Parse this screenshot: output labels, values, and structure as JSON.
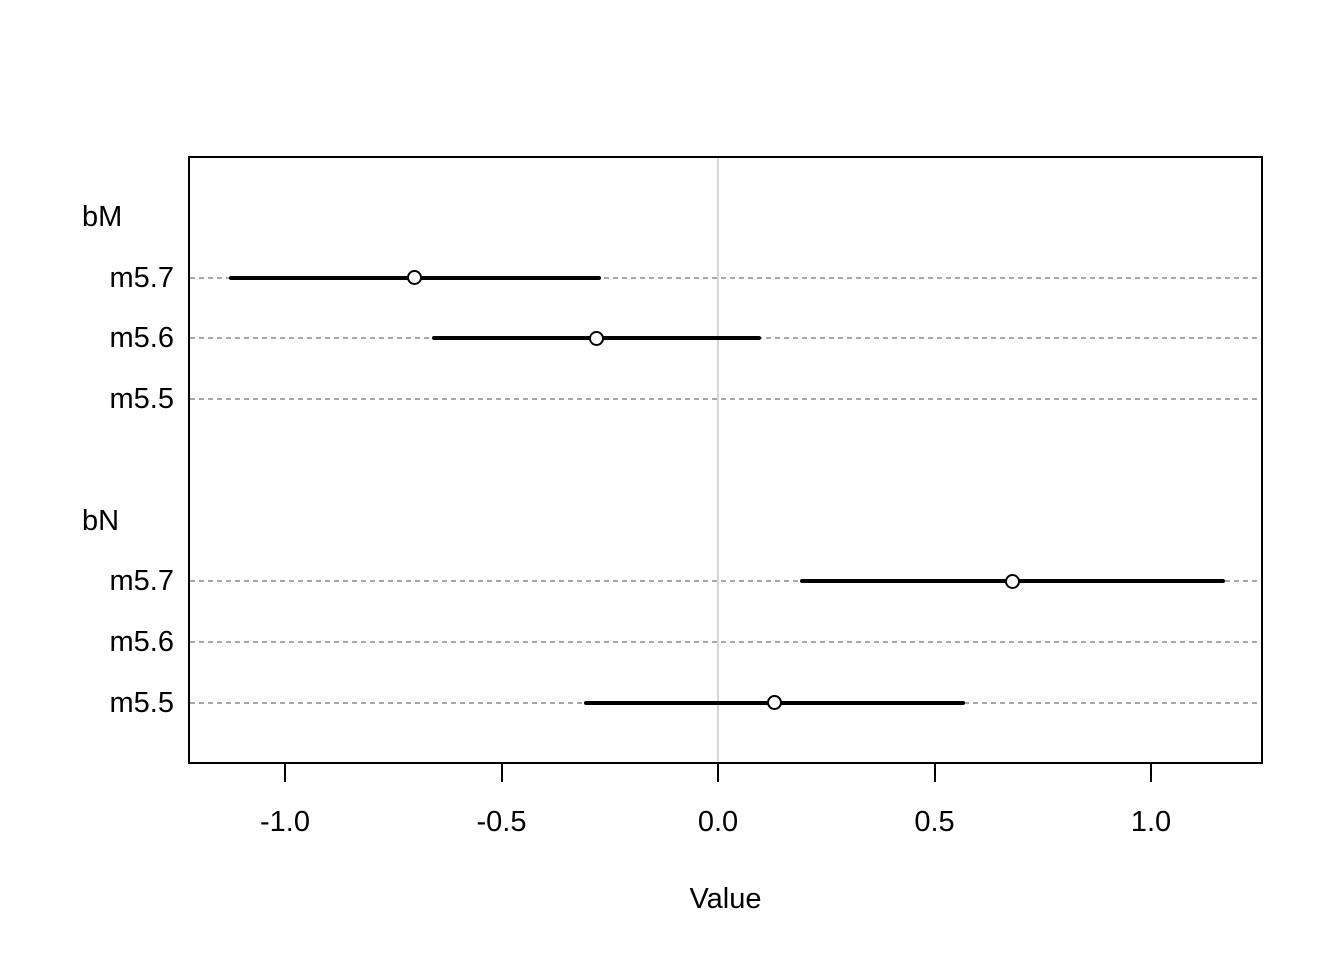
{
  "chart_data": {
    "type": "scatter",
    "subtype": "coefficient-interval-plot",
    "title": "",
    "xlabel": "Value",
    "ylabel": "",
    "xlim": [
      -1.22,
      1.26
    ],
    "x_ticks": [
      -1.0,
      -0.5,
      0.0,
      0.5,
      1.0
    ],
    "x_tick_labels": [
      "-1.0",
      "-0.5",
      "0.0",
      "0.5",
      "1.0"
    ],
    "zero_reference_line": 0.0,
    "grid": "dashed horizontal line per model row",
    "legend": "none",
    "rows": [
      {
        "kind": "group",
        "label": "bM",
        "est": null,
        "lo": null,
        "hi": null
      },
      {
        "kind": "model",
        "label": "m5.7",
        "est": -0.7,
        "lo": -1.13,
        "hi": -0.27
      },
      {
        "kind": "model",
        "label": "m5.6",
        "est": -0.28,
        "lo": -0.66,
        "hi": 0.1
      },
      {
        "kind": "model",
        "label": "m5.5",
        "est": null,
        "lo": null,
        "hi": null
      },
      {
        "kind": "spacer",
        "label": "",
        "est": null,
        "lo": null,
        "hi": null
      },
      {
        "kind": "group",
        "label": "bN",
        "est": null,
        "lo": null,
        "hi": null
      },
      {
        "kind": "model",
        "label": "m5.7",
        "est": 0.68,
        "lo": 0.19,
        "hi": 1.17
      },
      {
        "kind": "model",
        "label": "m5.6",
        "est": null,
        "lo": null,
        "hi": null
      },
      {
        "kind": "model",
        "label": "m5.5",
        "est": 0.13,
        "lo": -0.31,
        "hi": 0.57
      }
    ],
    "colors": {
      "data": "#000000",
      "marker_fill": "#ffffff",
      "grid": "#a9a9a9",
      "zero_line": "#d6d6d6",
      "background": "#ffffff",
      "box_border": "#000000"
    }
  }
}
